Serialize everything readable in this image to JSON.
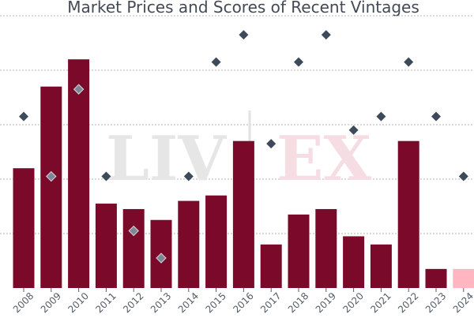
{
  "chart_data": {
    "type": "bar",
    "title": "Market Prices and Scores of Recent Vintages",
    "watermark": {
      "left": "LIV",
      "right": "EX"
    },
    "categories": [
      "2008",
      "2009",
      "2010",
      "2011",
      "2012",
      "2013",
      "2014",
      "2015",
      "2016",
      "2017",
      "2018",
      "2019",
      "2020",
      "2021",
      "2022",
      "2023",
      "2024"
    ],
    "series": [
      {
        "kind": "bar",
        "values": [
          0.44,
          0.74,
          0.84,
          0.31,
          0.29,
          0.25,
          0.32,
          0.34,
          0.54,
          0.16,
          0.27,
          0.29,
          0.19,
          0.16,
          0.54,
          0.07,
          0.07
        ],
        "color": "#7b0a2a",
        "highlight_color": "#ffb6c1",
        "highlight_index": 16
      },
      {
        "kind": "scatter",
        "marker": "diamond",
        "values": [
          0.63,
          0.41,
          0.73,
          0.41,
          0.21,
          0.11,
          0.41,
          0.83,
          0.93,
          0.53,
          0.83,
          0.93,
          0.58,
          0.63,
          0.83,
          0.63,
          0.41
        ],
        "color": "#3d4a5a",
        "over_bar_color": "#7f8794"
      }
    ],
    "ylim": [
      0,
      1
    ],
    "grid": true,
    "legend": "none"
  }
}
